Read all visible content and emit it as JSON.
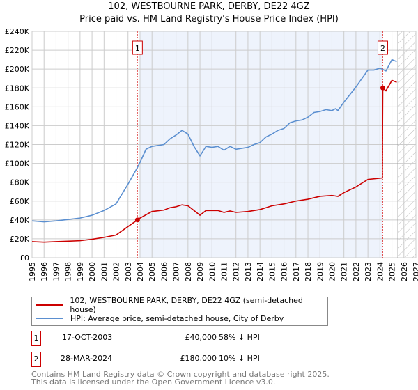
{
  "chart_data": {
    "type": "line",
    "title": "102, WESTBOURNE PARK, DERBY, DE22 4GZ",
    "subtitle": "Price paid vs. HM Land Registry's House Price Index (HPI)",
    "xlim": [
      1995,
      2027
    ],
    "ylim": [
      0,
      240000
    ],
    "yticks": [
      0,
      20000,
      40000,
      60000,
      80000,
      100000,
      120000,
      140000,
      160000,
      180000,
      200000,
      220000,
      240000
    ],
    "ytick_labels": [
      "£0",
      "£20K",
      "£40K",
      "£60K",
      "£80K",
      "£100K",
      "£120K",
      "£140K",
      "£160K",
      "£180K",
      "£200K",
      "£220K",
      "£240K"
    ],
    "xticks": [
      "1995",
      "1996",
      "1997",
      "1998",
      "1999",
      "2000",
      "2001",
      "2002",
      "2003",
      "2004",
      "2005",
      "2006",
      "2007",
      "2008",
      "2009",
      "2010",
      "2011",
      "2012",
      "2013",
      "2014",
      "2015",
      "2016",
      "2017",
      "2018",
      "2019",
      "2020",
      "2021",
      "2022",
      "2023",
      "2024",
      "2025",
      "2026",
      "2027"
    ],
    "grid": true,
    "shaded_period": [
      2004.0,
      2024.24
    ],
    "forecast_hatch_from": 2025.5,
    "series": [
      {
        "name": "102, WESTBOURNE PARK, DERBY, DE22 4GZ (semi-detached house)",
        "color": "#cc0000",
        "x": [
          1995,
          1996,
          1997,
          1998,
          1999,
          2000,
          2001,
          2002,
          2003,
          2003.79,
          2004,
          2005,
          2006,
          2006.5,
          2007,
          2007.5,
          2008,
          2008.5,
          2009,
          2009.5,
          2010,
          2010.5,
          2011,
          2011.5,
          2012,
          2013,
          2014,
          2014.5,
          2015,
          2016,
          2017,
          2018,
          2019,
          2020,
          2020.5,
          2021,
          2022,
          2023,
          2024.2,
          2024.24,
          2024.5,
          2025,
          2025.4
        ],
        "y": [
          17000,
          16500,
          17000,
          17500,
          18000,
          19500,
          21500,
          24000,
          33000,
          40000,
          42000,
          49000,
          50500,
          53000,
          54000,
          56000,
          55000,
          50000,
          45000,
          50000,
          50000,
          50000,
          48000,
          49500,
          48000,
          49000,
          51000,
          53000,
          55000,
          57000,
          60000,
          62000,
          65000,
          66000,
          65000,
          69000,
          75000,
          83000,
          84500,
          180000,
          177000,
          188000,
          186000
        ]
      },
      {
        "name": "HPI: Average price, semi-detached house, City of Derby",
        "color": "#5b8fd0",
        "x": [
          1995,
          1996,
          1997,
          1998,
          1999,
          2000,
          2001,
          2002,
          2003,
          2003.8,
          2004,
          2004.5,
          2005,
          2006,
          2006.5,
          2007,
          2007.5,
          2008,
          2008.5,
          2009,
          2009.5,
          2010,
          2010.5,
          2011,
          2011.5,
          2012,
          2012.5,
          2013,
          2013.5,
          2014,
          2014.5,
          2015,
          2015.5,
          2016,
          2016.5,
          2017,
          2017.5,
          2018,
          2018.5,
          2019,
          2019.5,
          2020,
          2020.3,
          2020.5,
          2021,
          2021.5,
          2022,
          2022.5,
          2023,
          2023.5,
          2024,
          2024.5,
          2025,
          2025.4
        ],
        "y": [
          39000,
          38000,
          39000,
          40500,
          42000,
          45000,
          50000,
          57000,
          78000,
          96000,
          101000,
          115000,
          118000,
          120000,
          126000,
          130000,
          135000,
          131000,
          118000,
          108000,
          118000,
          117000,
          118000,
          114000,
          118000,
          115000,
          116000,
          117000,
          120000,
          122000,
          128000,
          131000,
          135000,
          137000,
          143000,
          145000,
          146000,
          149000,
          154000,
          155000,
          157000,
          156000,
          158000,
          156000,
          165000,
          173000,
          181000,
          190000,
          199000,
          199000,
          201000,
          198000,
          210000,
          208000
        ]
      }
    ],
    "annotations": [
      {
        "label": "1",
        "x": 2003.79,
        "y": 40000
      },
      {
        "label": "2",
        "x": 2024.24,
        "y": 180000
      }
    ]
  },
  "legend": [
    "102, WESTBOURNE PARK, DERBY, DE22 4GZ (semi-detached house)",
    "HPI: Average price, semi-detached house, City of Derby"
  ],
  "transactions": [
    {
      "num": "1",
      "date": "17-OCT-2003",
      "price": "£40,000",
      "hpi": "58% ↓ HPI"
    },
    {
      "num": "2",
      "date": "28-MAR-2024",
      "price": "£180,000",
      "hpi": "10% ↓ HPI"
    }
  ],
  "footer": [
    "Contains HM Land Registry data © Crown copyright and database right 2025.",
    "This data is licensed under the Open Government Licence v3.0."
  ]
}
